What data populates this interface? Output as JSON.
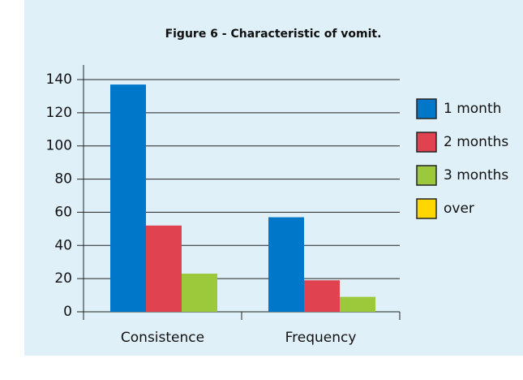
{
  "chart_data": {
    "type": "bar",
    "title": "Figure 6 - Characteristic of vomit.",
    "categories": [
      "Consistence",
      "Frequency"
    ],
    "series": [
      {
        "name": "1 month",
        "color": "#0077c8",
        "values": [
          137,
          57
        ]
      },
      {
        "name": "2 months",
        "color": "#e0424f",
        "values": [
          52,
          19
        ]
      },
      {
        "name": "3 months",
        "color": "#9cc83c",
        "values": [
          23,
          9
        ]
      },
      {
        "name": "over",
        "color": "#ffd700",
        "values": [
          0,
          0
        ]
      }
    ],
    "ylim": [
      0,
      140
    ],
    "yticks": [
      0,
      20,
      40,
      60,
      80,
      100,
      120,
      140
    ],
    "grid": true,
    "legend": "right"
  }
}
